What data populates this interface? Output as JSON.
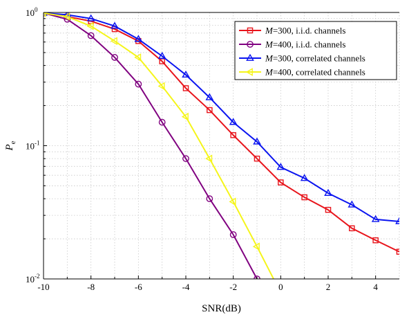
{
  "chart_data": {
    "type": "line",
    "xlabel": "SNR(dB)",
    "ylabel": "P",
    "ylabel_sub": "e",
    "xlim": [
      -10,
      5
    ],
    "ylim": [
      0.01,
      1
    ],
    "yscale": "log",
    "grid": true,
    "legend_position": "top-right",
    "x_ticks": [
      -10,
      -8,
      -6,
      -4,
      -2,
      0,
      2,
      4
    ],
    "x_tick_labels": [
      "-10",
      "-8",
      "-6",
      "-4",
      "-2",
      "0",
      "2",
      "4"
    ],
    "y_ticks": [
      0.01,
      0.1,
      1
    ],
    "y_tick_labels": [
      {
        "base": "10",
        "exp": "-2"
      },
      {
        "base": "10",
        "exp": "-1"
      },
      {
        "base": "10",
        "exp": "0"
      }
    ],
    "series": [
      {
        "name": "M=300, i.i.d. channels",
        "name_italic": "M",
        "name_rest": "=300, i.i.d. channels",
        "color": "#e8141b",
        "marker": "square",
        "x": [
          -10,
          -9,
          -8,
          -7,
          -6,
          -5,
          -4,
          -3,
          -2,
          -1,
          0,
          1,
          2,
          3,
          4,
          5
        ],
        "y": [
          0.99,
          0.93,
          0.86,
          0.75,
          0.61,
          0.43,
          0.27,
          0.185,
          0.12,
          0.08,
          0.053,
          0.041,
          0.033,
          0.024,
          0.0195,
          0.016
        ]
      },
      {
        "name": "M=400, i.i.d. channels",
        "name_italic": "M",
        "name_rest": "=400, i.i.d. channels",
        "color": "#800080",
        "marker": "circle",
        "x": [
          -10,
          -9,
          -8,
          -7,
          -6,
          -5,
          -4,
          -3,
          -2,
          -1
        ],
        "y": [
          0.99,
          0.89,
          0.67,
          0.46,
          0.29,
          0.15,
          0.08,
          0.04,
          0.0215,
          0.01
        ]
      },
      {
        "name": "M=300, correlated channels",
        "name_italic": "M",
        "name_rest": "=300, correlated channels",
        "color": "#0a14f0",
        "marker": "triangle-up",
        "x": [
          -10,
          -9,
          -8,
          -7,
          -6,
          -5,
          -4,
          -3,
          -2,
          -1,
          0,
          1,
          2,
          3,
          4,
          5
        ],
        "y": [
          0.99,
          0.96,
          0.9,
          0.79,
          0.63,
          0.47,
          0.34,
          0.23,
          0.15,
          0.107,
          0.069,
          0.057,
          0.044,
          0.036,
          0.028,
          0.027
        ]
      },
      {
        "name": "M=400, correlated channels",
        "name_italic": "M",
        "name_rest": "=400, correlated channels",
        "color": "#f5f51a",
        "marker": "triangle-left",
        "x": [
          -10,
          -9,
          -8,
          -7,
          -6,
          -5,
          -4,
          -3,
          -2,
          -1,
          -0.3
        ],
        "y": [
          0.99,
          0.93,
          0.79,
          0.61,
          0.46,
          0.28,
          0.165,
          0.08,
          0.038,
          0.0175,
          0.01
        ]
      }
    ]
  }
}
